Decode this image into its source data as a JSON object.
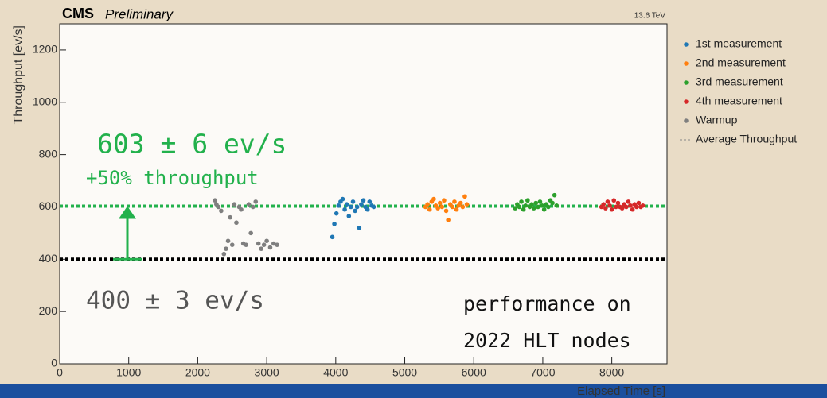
{
  "chart_data": {
    "type": "scatter",
    "experiment": "CMS",
    "status": "Preliminary",
    "energy": "13.6 TeV",
    "xlabel": "Elapsed Time [s]",
    "ylabel": "Throughput [ev/s]",
    "xlim": [
      0,
      8800
    ],
    "ylim": [
      0,
      1300
    ],
    "xticks": [
      0,
      1000,
      2000,
      3000,
      4000,
      5000,
      6000,
      7000,
      8000
    ],
    "yticks": [
      0,
      200,
      400,
      600,
      800,
      1000,
      1200
    ],
    "series": [
      {
        "name": "1st measurement",
        "color": "#1f77b4",
        "x": [
          3950,
          3980,
          4010,
          4040,
          4070,
          4100,
          4130,
          4160,
          4190,
          4220,
          4250,
          4280,
          4310,
          4340,
          4370,
          4400,
          4430,
          4460,
          4490,
          4520,
          4550
        ],
        "values": [
          485,
          535,
          575,
          605,
          620,
          630,
          590,
          610,
          565,
          600,
          620,
          585,
          600,
          520,
          610,
          625,
          600,
          590,
          620,
          605,
          600
        ]
      },
      {
        "name": "2nd measurement",
        "color": "#ff7f0e",
        "x": [
          5300,
          5330,
          5360,
          5390,
          5420,
          5450,
          5480,
          5510,
          5540,
          5570,
          5600,
          5630,
          5660,
          5690,
          5720,
          5750,
          5780,
          5810,
          5840,
          5870,
          5900
        ],
        "values": [
          600,
          610,
          590,
          620,
          630,
          605,
          595,
          615,
          600,
          625,
          585,
          550,
          610,
          600,
          620,
          590,
          605,
          615,
          600,
          640,
          610
        ]
      },
      {
        "name": "3rd measurement",
        "color": "#2ca02c",
        "x": [
          6600,
          6630,
          6660,
          6690,
          6720,
          6750,
          6780,
          6810,
          6840,
          6870,
          6900,
          6930,
          6960,
          6990,
          7020,
          7050,
          7080,
          7110,
          7140,
          7170,
          7200
        ],
        "values": [
          595,
          610,
          600,
          620,
          590,
          605,
          625,
          600,
          610,
          595,
          615,
          600,
          620,
          605,
          590,
          610,
          600,
          625,
          615,
          645,
          605
        ]
      },
      {
        "name": "4th measurement",
        "color": "#d62728",
        "x": [
          7850,
          7880,
          7910,
          7940,
          7970,
          8000,
          8030,
          8060,
          8090,
          8120,
          8150,
          8180,
          8210,
          8240,
          8270,
          8300,
          8330,
          8360,
          8390,
          8420,
          8450
        ],
        "values": [
          600,
          610,
          595,
          620,
          605,
          590,
          625,
          600,
          615,
          600,
          595,
          610,
          600,
          620,
          605,
          590,
          610,
          600,
          615,
          600,
          605
        ]
      },
      {
        "name": "Warmup",
        "color": "#7f7f7f",
        "x": [
          2250,
          2270,
          2300,
          2340,
          2380,
          2410,
          2440,
          2470,
          2500,
          2530,
          2560,
          2600,
          2630,
          2660,
          2700,
          2740,
          2770,
          2800,
          2840,
          2880,
          2920,
          2960,
          3000,
          3050,
          3100,
          3150
        ],
        "values": [
          625,
          610,
          600,
          585,
          420,
          440,
          470,
          560,
          455,
          610,
          540,
          600,
          590,
          460,
          455,
          610,
          500,
          600,
          620,
          460,
          440,
          455,
          470,
          445,
          460,
          455
        ]
      }
    ],
    "average": {
      "name": "Average Throughput",
      "legend_color": "#888888",
      "lines": [
        {
          "value": 400,
          "color": "#000000"
        },
        {
          "value": 603,
          "color": "#22b14c"
        }
      ]
    },
    "annotations": [
      {
        "text": "603 ± 6 ev/s",
        "color": "#22b14c"
      },
      {
        "text": "+50% throughput",
        "color": "#22b14c"
      },
      {
        "text": "400 ± 3 ev/s",
        "color": "#555555"
      },
      {
        "text": "performance on",
        "color": "#111111"
      },
      {
        "text": "2022 HLT nodes",
        "color": "#111111"
      }
    ]
  }
}
